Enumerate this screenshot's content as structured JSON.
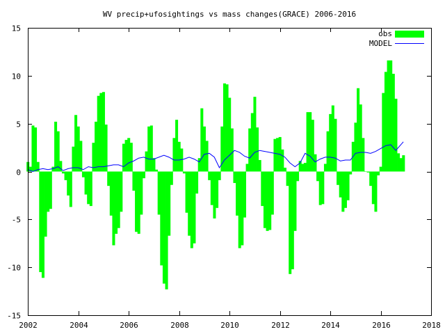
{
  "chart_data": {
    "type": "bar",
    "title": "WV precip+ufosightings vs mass changes(GRACE) 2006-2016",
    "xlim": [
      2002,
      2018
    ],
    "ylim": [
      -15,
      15
    ],
    "x_ticks": [
      2002,
      2004,
      2006,
      2008,
      2010,
      2012,
      2014,
      2016,
      2018
    ],
    "x_tick_labels": [
      "2002",
      "2004",
      "2006",
      "2008",
      "2010",
      "2012",
      "2014",
      "2016",
      "2018"
    ],
    "y_ticks": [
      -15,
      -10,
      -5,
      0,
      5,
      10,
      15
    ],
    "y_tick_labels": [
      "-15",
      "-10",
      "-5",
      "0",
      "5",
      "10",
      "15"
    ],
    "grid": false,
    "legend_position": "top-right",
    "bar_width": 0.1,
    "series": [
      {
        "name": "obs",
        "kind": "bar",
        "color": "#00ff00",
        "x": [
          2002.0,
          2002.1,
          2002.2,
          2002.3,
          2002.4,
          2002.5,
          2002.6,
          2002.7,
          2002.8,
          2002.9,
          2003.0,
          2003.1,
          2003.2,
          2003.3,
          2003.4,
          2003.5,
          2003.6,
          2003.7,
          2003.8,
          2003.9,
          2004.0,
          2004.1,
          2004.2,
          2004.3,
          2004.4,
          2004.5,
          2004.6,
          2004.7,
          2004.8,
          2004.9,
          2005.0,
          2005.1,
          2005.2,
          2005.3,
          2005.4,
          2005.5,
          2005.6,
          2005.7,
          2005.8,
          2005.9,
          2006.0,
          2006.1,
          2006.2,
          2006.3,
          2006.4,
          2006.5,
          2006.6,
          2006.7,
          2006.8,
          2006.9,
          2007.0,
          2007.1,
          2007.2,
          2007.3,
          2007.4,
          2007.5,
          2007.6,
          2007.7,
          2007.8,
          2007.9,
          2008.0,
          2008.1,
          2008.2,
          2008.3,
          2008.4,
          2008.5,
          2008.6,
          2008.7,
          2008.8,
          2008.9,
          2009.0,
          2009.1,
          2009.2,
          2009.3,
          2009.4,
          2009.5,
          2009.6,
          2009.7,
          2009.8,
          2009.9,
          2010.0,
          2010.1,
          2010.2,
          2010.3,
          2010.4,
          2010.5,
          2010.6,
          2010.7,
          2010.8,
          2010.9,
          2011.0,
          2011.1,
          2011.2,
          2011.3,
          2011.4,
          2011.5,
          2011.6,
          2011.7,
          2011.8,
          2011.9,
          2012.0,
          2012.1,
          2012.2,
          2012.3,
          2012.4,
          2012.5,
          2012.6,
          2012.7,
          2012.8,
          2012.9,
          2013.0,
          2013.1,
          2013.2,
          2013.3,
          2013.4,
          2013.5,
          2013.6,
          2013.7,
          2013.8,
          2013.9,
          2014.0,
          2014.1,
          2014.2,
          2014.3,
          2014.4,
          2014.5,
          2014.6,
          2014.7,
          2014.8,
          2014.9,
          2015.0,
          2015.1,
          2015.2,
          2015.3,
          2015.4,
          2015.5,
          2015.6,
          2015.7,
          2015.8,
          2015.9,
          2016.0,
          2016.1,
          2016.2,
          2016.3,
          2016.4,
          2016.5,
          2016.6,
          2016.7,
          2016.8,
          2016.9
        ],
        "values": [
          1.0,
          0.5,
          4.8,
          4.6,
          1.0,
          -10.5,
          -11.1,
          -6.8,
          -4.2,
          -3.9,
          0.5,
          5.2,
          4.2,
          1.1,
          -0.2,
          -0.9,
          -2.5,
          -3.7,
          2.6,
          5.9,
          4.7,
          3.2,
          -0.6,
          -2.4,
          -3.4,
          -3.6,
          3.0,
          5.2,
          7.9,
          8.2,
          8.3,
          4.9,
          -1.5,
          -4.6,
          -7.7,
          -6.5,
          -5.9,
          -4.2,
          2.9,
          3.3,
          3.5,
          3.0,
          -2.0,
          -6.3,
          -6.5,
          -4.5,
          -0.7,
          2.1,
          4.7,
          4.8,
          1.4,
          0.2,
          -4.5,
          -9.8,
          -11.7,
          -12.3,
          -6.7,
          -1.4,
          3.5,
          5.4,
          3.1,
          2.4,
          -0.2,
          -4.3,
          -6.7,
          -8.0,
          -7.5,
          -2.3,
          1.4,
          6.6,
          4.7,
          3.2,
          -0.9,
          -3.5,
          -4.9,
          -3.8,
          -0.9,
          4.7,
          9.2,
          9.1,
          7.7,
          4.5,
          -1.2,
          -4.6,
          -8.0,
          -7.7,
          -4.8,
          0.8,
          4.5,
          6.1,
          7.8,
          4.6,
          1.2,
          -3.6,
          -5.9,
          -6.2,
          -6.1,
          -4.5,
          3.4,
          3.5,
          3.6,
          2.3,
          0.4,
          -1.5,
          -10.7,
          -10.2,
          -6.2,
          -1.0,
          1.1,
          0.8,
          0.9,
          6.2,
          6.2,
          5.4,
          1.8,
          -1.0,
          -3.5,
          -3.4,
          0.8,
          4.2,
          6.0,
          6.9,
          5.5,
          -1.4,
          -2.7,
          -4.2,
          -3.8,
          -3.0,
          -0.3,
          3.1,
          5.1,
          8.7,
          7.0,
          3.5,
          0.0,
          -0.1,
          -1.5,
          -3.4,
          -4.2,
          -0.4,
          0.5,
          8.2,
          10.4,
          11.6,
          11.6,
          10.2,
          7.6,
          1.9,
          1.4,
          1.7
        ]
      },
      {
        "name": "MODEL",
        "kind": "line",
        "color": "#0000ff",
        "x": [
          2002.0,
          2002.2,
          2002.4,
          2002.6,
          2002.8,
          2003.0,
          2003.2,
          2003.4,
          2003.6,
          2003.8,
          2004.0,
          2004.2,
          2004.4,
          2004.6,
          2004.8,
          2005.0,
          2005.2,
          2005.4,
          2005.6,
          2005.8,
          2006.0,
          2006.2,
          2006.4,
          2006.6,
          2006.8,
          2007.0,
          2007.2,
          2007.4,
          2007.6,
          2007.8,
          2008.0,
          2008.2,
          2008.4,
          2008.6,
          2008.8,
          2009.0,
          2009.2,
          2009.4,
          2009.6,
          2009.8,
          2010.0,
          2010.2,
          2010.4,
          2010.6,
          2010.8,
          2011.0,
          2011.2,
          2011.4,
          2011.6,
          2011.8,
          2012.0,
          2012.2,
          2012.4,
          2012.6,
          2012.8,
          2013.0,
          2013.2,
          2013.4,
          2013.6,
          2013.8,
          2014.0,
          2014.2,
          2014.4,
          2014.6,
          2014.8,
          2015.0,
          2015.2,
          2015.4,
          2015.6,
          2015.8,
          2016.0,
          2016.2,
          2016.4,
          2016.6,
          2016.8,
          2016.9
        ],
        "values": [
          0.2,
          0.0,
          0.2,
          0.3,
          0.2,
          0.3,
          0.5,
          0.1,
          0.3,
          0.4,
          0.4,
          0.2,
          0.5,
          0.4,
          0.5,
          0.5,
          0.6,
          0.7,
          0.7,
          0.5,
          0.9,
          1.1,
          1.4,
          1.5,
          1.3,
          1.3,
          1.5,
          1.7,
          1.5,
          1.2,
          1.2,
          1.3,
          1.5,
          1.3,
          1.0,
          1.8,
          1.9,
          1.5,
          0.4,
          1.2,
          1.7,
          2.2,
          2.0,
          1.6,
          1.4,
          2.0,
          2.2,
          2.1,
          2.0,
          1.9,
          1.8,
          1.5,
          0.9,
          0.5,
          0.9,
          1.9,
          1.6,
          1.0,
          1.3,
          1.5,
          1.5,
          1.4,
          1.1,
          1.2,
          1.2,
          1.9,
          2.0,
          2.0,
          1.9,
          2.1,
          2.4,
          2.7,
          2.8,
          2.2,
          2.8,
          3.1
        ]
      }
    ]
  }
}
